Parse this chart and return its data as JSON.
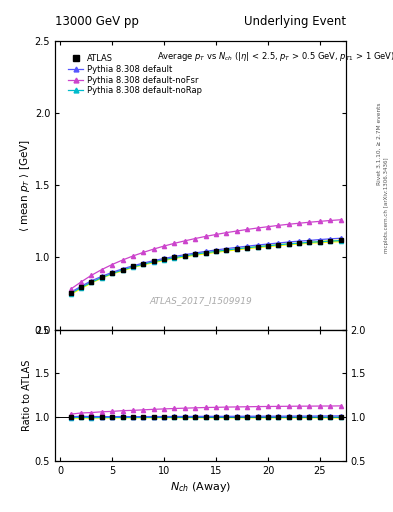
{
  "title_left": "13000 GeV pp",
  "title_right": "Underlying Event",
  "panel_title": "Average $p_T$ vs $N_{ch}$ ($|\\eta|$ < 2.5, $p_T$ > 0.5 GeV, $p_{T1}$ > 1 GeV)",
  "ylabel_main": "$\\langle$ mean $p_T$ $\\rangle$ [GeV]",
  "ylabel_ratio": "Ratio to ATLAS",
  "xlabel": "$N_{ch}$ (Away)",
  "ylim_main": [
    0.5,
    2.5
  ],
  "ylim_ratio": [
    0.5,
    2.0
  ],
  "right_label_top": "Rivet 3.1.10, ≥ 2.7M events",
  "right_label_bot": "mcplots.cern.ch [arXiv:1306.3436]",
  "watermark": "ATLAS_2017_I1509919",
  "x_data": [
    1,
    2,
    3,
    4,
    5,
    6,
    7,
    8,
    9,
    10,
    11,
    12,
    13,
    14,
    15,
    16,
    17,
    18,
    19,
    20,
    21,
    22,
    23,
    24,
    25,
    26,
    27
  ],
  "atlas_y": [
    0.755,
    0.793,
    0.833,
    0.864,
    0.893,
    0.915,
    0.938,
    0.956,
    0.972,
    0.987,
    1.0,
    1.012,
    1.023,
    1.033,
    1.043,
    1.052,
    1.06,
    1.068,
    1.075,
    1.082,
    1.089,
    1.095,
    1.1,
    1.106,
    1.11,
    1.115,
    1.118
  ],
  "atlas_yerr": [
    0.005,
    0.004,
    0.004,
    0.003,
    0.003,
    0.003,
    0.003,
    0.003,
    0.003,
    0.003,
    0.003,
    0.003,
    0.003,
    0.003,
    0.003,
    0.003,
    0.003,
    0.003,
    0.003,
    0.003,
    0.003,
    0.003,
    0.003,
    0.003,
    0.004,
    0.004,
    0.005
  ],
  "pythia_default_y": [
    0.758,
    0.8,
    0.838,
    0.869,
    0.897,
    0.921,
    0.942,
    0.961,
    0.978,
    0.993,
    1.007,
    1.019,
    1.031,
    1.042,
    1.052,
    1.061,
    1.07,
    1.078,
    1.086,
    1.093,
    1.1,
    1.107,
    1.113,
    1.118,
    1.124,
    1.129,
    1.133
  ],
  "pythia_noFsr_y": [
    0.78,
    0.83,
    0.876,
    0.916,
    0.951,
    0.982,
    1.01,
    1.035,
    1.058,
    1.079,
    1.098,
    1.115,
    1.131,
    1.146,
    1.159,
    1.172,
    1.183,
    1.194,
    1.204,
    1.213,
    1.222,
    1.23,
    1.237,
    1.244,
    1.25,
    1.256,
    1.261
  ],
  "pythia_noRap_y": [
    0.75,
    0.791,
    0.828,
    0.86,
    0.889,
    0.913,
    0.934,
    0.953,
    0.97,
    0.985,
    0.998,
    1.011,
    1.022,
    1.033,
    1.042,
    1.051,
    1.06,
    1.067,
    1.075,
    1.081,
    1.088,
    1.094,
    1.099,
    1.105,
    1.109,
    1.113,
    1.117
  ],
  "color_atlas": "#000000",
  "color_default": "#5555ff",
  "color_noFsr": "#cc44cc",
  "color_noRap": "#00bbcc",
  "atlas_band_color": "#ffff00",
  "legend_entries": [
    "ATLAS",
    "Pythia 8.308 default",
    "Pythia 8.308 default-noFsr",
    "Pythia 8.308 default-noRap"
  ],
  "xlim": [
    -0.5,
    27.5
  ],
  "xticks": [
    0,
    5,
    10,
    15,
    20,
    25
  ],
  "yticks_main": [
    0.5,
    1.0,
    1.5,
    2.0,
    2.5
  ],
  "yticks_ratio": [
    0.5,
    1.0,
    1.5,
    2.0
  ]
}
